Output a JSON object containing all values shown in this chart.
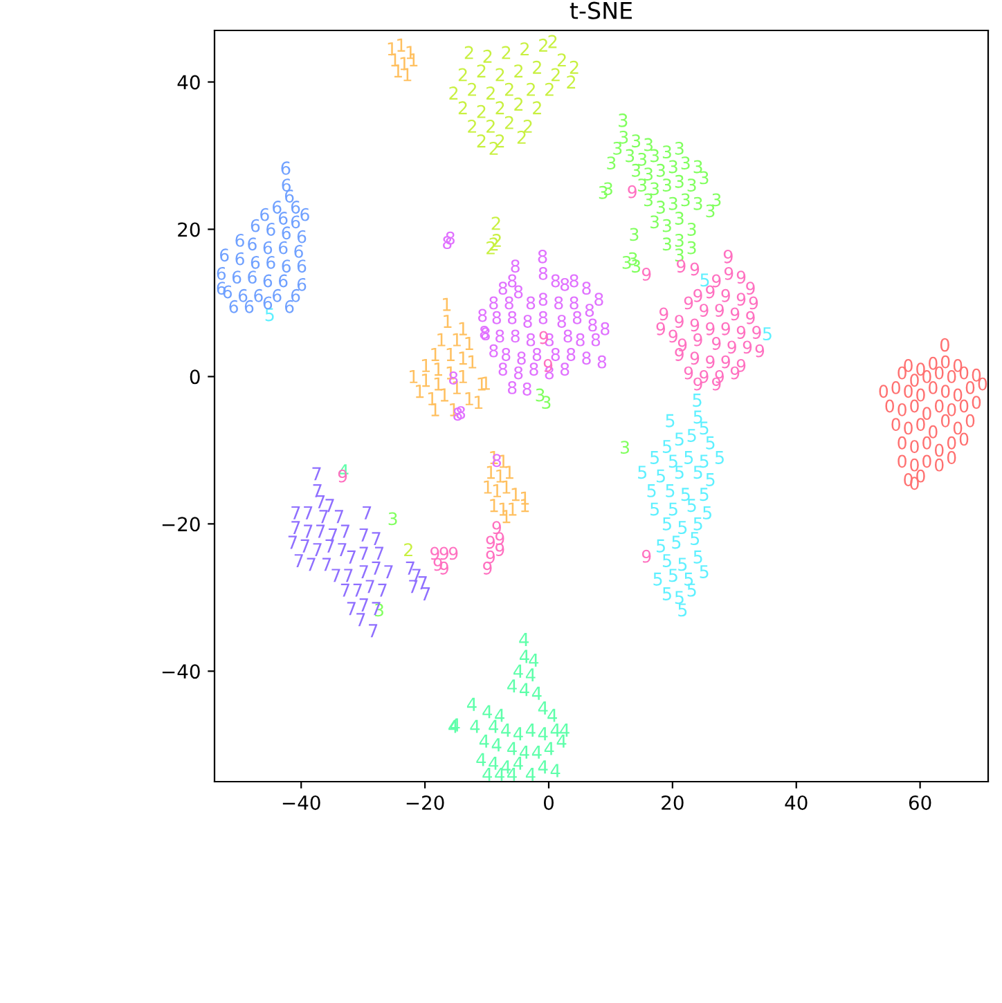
{
  "chart_data": {
    "type": "scatter",
    "title": "t-SNE",
    "xlim": [
      -54,
      71
    ],
    "ylim": [
      -55,
      47
    ],
    "xticks": [
      -40,
      -20,
      0,
      20,
      40,
      60
    ],
    "yticks": [
      -40,
      -20,
      0,
      20,
      40
    ],
    "grid": false,
    "series": [
      {
        "name": "0",
        "color": "#ff7070",
        "x": [
          64,
          60,
          62,
          58,
          66,
          57,
          59,
          61,
          63,
          65,
          67,
          69,
          54,
          56,
          58,
          60,
          62,
          64,
          66,
          68,
          70,
          55,
          57,
          59,
          61,
          63,
          65,
          67,
          69,
          56,
          58,
          60,
          62,
          64,
          66,
          68,
          57,
          59,
          61,
          63,
          65,
          67,
          57,
          59,
          61,
          63,
          65,
          58,
          60,
          59
        ],
        "values": [
          2,
          1,
          1.8,
          1.5,
          1.5,
          0.5,
          -0.5,
          0,
          0.5,
          0,
          0.5,
          0.2,
          -2,
          -1.5,
          -2,
          -2.5,
          -1.5,
          -2,
          -2.5,
          -1.5,
          -1,
          -4,
          -4.5,
          -4,
          -5,
          -4,
          -4.5,
          -4,
          -3.5,
          -6.5,
          -7,
          -6.5,
          -7.5,
          -6,
          -7,
          -6,
          -9,
          -9.5,
          -9,
          -10,
          -9,
          -8.5,
          -11.5,
          -12,
          -11.5,
          -12,
          -11,
          -14,
          -13.5,
          -14.5
        ]
      },
      {
        "name": "1",
        "color": "#ffc060",
        "x": [
          -16.5,
          -24,
          -22.5,
          -25,
          -23.5,
          -22,
          -24.5,
          -23,
          -25.5,
          -14,
          -17.5,
          -15,
          -13,
          -18.5,
          -16,
          -14,
          -12.5,
          -20,
          -18,
          -16,
          -14,
          -22,
          -20,
          -18,
          -15,
          -11,
          -21,
          -19,
          -17,
          -13,
          -18.5,
          -15.5,
          -11.5,
          -10.3,
          -9,
          -7.5,
          -9.5,
          -8,
          -6.5,
          -10,
          -8.5,
          -7,
          -5.5,
          -4,
          -9,
          -7.5,
          -6,
          -4,
          -7
        ],
        "values": [
          7.5,
          45,
          44,
          43,
          42.5,
          43,
          41.5,
          41,
          44.5,
          6.5,
          5,
          5,
          4.5,
          3,
          3,
          2.5,
          2,
          1.5,
          1,
          0.5,
          0,
          0,
          -0.5,
          -1,
          -1.5,
          -1,
          -2,
          -3,
          -2.5,
          -3,
          -4.5,
          -4.5,
          -3.5,
          -0.9,
          -11,
          -11.5,
          -13,
          -13.5,
          -13,
          -15,
          -15.5,
          -15,
          -16,
          -16.5,
          -17.5,
          -18,
          -18,
          -17.5,
          -19
        ]
      },
      {
        "name": "2",
        "color": "#c8f040",
        "x": [
          -8.5,
          -10,
          -7,
          -4,
          -1,
          0.5,
          2,
          4,
          -14,
          -11,
          -8,
          -5,
          -2,
          1,
          3.5,
          -15.5,
          -12.5,
          -9.5,
          -6.5,
          -3,
          0,
          -14,
          -11,
          -8,
          -5,
          -2,
          -12.5,
          -9.5,
          -6.5,
          -3.5,
          -11,
          -8,
          -4.5,
          -9,
          -9.5,
          -13,
          -9,
          -22.8
        ],
        "values": [
          18.5,
          43.5,
          44,
          44.5,
          45,
          45.5,
          43,
          42,
          41,
          41.5,
          41,
          41.5,
          42,
          41,
          40,
          38.5,
          39,
          38.5,
          39,
          39,
          39,
          36.5,
          36,
          36.5,
          37,
          36.5,
          34,
          34,
          34.5,
          34,
          32,
          32,
          32.5,
          31,
          17.5,
          44,
          18,
          -23.5
        ]
      },
      {
        "name": "3",
        "color": "#80ff5e",
        "x": [
          12,
          14,
          16,
          11,
          13,
          15,
          17,
          19,
          21,
          10,
          14,
          16,
          18,
          20,
          22,
          24,
          15,
          17,
          19,
          21,
          23,
          25,
          16,
          18,
          20,
          22,
          24,
          17,
          19,
          21,
          23,
          26,
          27,
          19,
          21,
          23,
          21,
          8.7,
          9.5,
          13.7,
          12.5,
          14,
          13.5,
          -1.5,
          -0.5,
          12.2,
          -25.3,
          -27.5
        ],
        "values": [
          32.5,
          32,
          31.5,
          31,
          30,
          29.5,
          30,
          30.5,
          31,
          29,
          28,
          27.5,
          28,
          28.5,
          29,
          28.5,
          26,
          25.5,
          26,
          26.5,
          26,
          27,
          24,
          23,
          23.5,
          24,
          23.5,
          21,
          20.5,
          21.5,
          20,
          22.5,
          24,
          18,
          18.5,
          17.5,
          16.5,
          25,
          25.5,
          19.3,
          15.5,
          15,
          16,
          -2.5,
          -3.5,
          -9.6,
          -19.3,
          -31.7
        ]
      },
      {
        "name": "4",
        "color": "#5effaa",
        "x": [
          -4,
          -2.5,
          -5,
          -3,
          -6,
          -4,
          -2,
          -1,
          0.5,
          -8,
          -10,
          -9,
          -12,
          -15.5,
          -7,
          -5,
          -3,
          -1,
          1,
          2.5,
          -10.5,
          -8.5,
          -6,
          -4,
          -2,
          0,
          2,
          -11,
          -9,
          -7,
          -5,
          -1,
          1,
          -10,
          -8,
          -6,
          -3,
          -12.5,
          -15.2,
          -33.2
        ],
        "values": [
          -38,
          -38.5,
          -40,
          -40.5,
          -42,
          -42.5,
          -43,
          -45,
          -46,
          -46,
          -45.5,
          -47.5,
          -47.5,
          -47.5,
          -48,
          -48.5,
          -48,
          -48.5,
          -48,
          -48,
          -49.5,
          -50,
          -50.5,
          -51,
          -51,
          -50.5,
          -49.5,
          -52,
          -52.5,
          -53,
          -52.5,
          -53,
          -53.5,
          -54,
          -54,
          -54,
          -54,
          -44.5,
          -47.3,
          -12.8
        ]
      },
      {
        "name": "5",
        "color": "#5ef0ff",
        "x": [
          24,
          19.5,
          25,
          21,
          23,
          26,
          19,
          17,
          20,
          22.5,
          25,
          27.5,
          15,
          18,
          21,
          24,
          26,
          16.5,
          19.5,
          22,
          25,
          17,
          20,
          23,
          25.5,
          19,
          21.5,
          24,
          18,
          20.5,
          23.5,
          19,
          21.5,
          24,
          17.5,
          20,
          22.5,
          25,
          19,
          21,
          23,
          21.5,
          35.2,
          25.1,
          -45.2
        ],
        "values": [
          -5.5,
          -6,
          -7,
          -8.5,
          -8,
          -9,
          -9.5,
          -11,
          -11.5,
          -11,
          -11.5,
          -11,
          -13,
          -13.5,
          -13,
          -13,
          -14,
          -15.5,
          -15.5,
          -16,
          -16,
          -18,
          -18,
          -17.5,
          -18.5,
          -20,
          -20.5,
          -20,
          -23,
          -22.5,
          -22,
          -25,
          -25.5,
          -24.5,
          -27.5,
          -27,
          -27.5,
          -26.5,
          -29.5,
          -30,
          -29,
          -31.7,
          5.8,
          13.1,
          8.4
        ]
      },
      {
        "name": "6",
        "color": "#6fa0ff",
        "x": [
          -42.5,
          -42,
          -44,
          -41,
          -39.5,
          -46,
          -43,
          -41,
          -47.5,
          -45,
          -42.5,
          -40,
          -50,
          -48,
          -45.5,
          -43,
          -40.5,
          -52.5,
          -50,
          -47.5,
          -45,
          -42.5,
          -40,
          -53,
          -50.5,
          -48,
          -45.5,
          -43,
          -40,
          -52,
          -49.5,
          -47,
          -44,
          -41,
          -51,
          -48.5,
          -45.5,
          -42,
          -53
        ],
        "values": [
          26,
          24.5,
          23,
          23,
          22,
          22,
          21.5,
          21,
          20.5,
          20,
          19.5,
          19,
          18.5,
          18,
          17.5,
          17.5,
          17,
          16.5,
          16,
          15.5,
          15.5,
          15,
          15,
          14,
          13.5,
          13.5,
          13,
          13,
          12.5,
          11.5,
          11,
          11,
          11,
          11,
          9.5,
          9.5,
          10,
          9.5,
          12
        ]
      },
      {
        "name": "7",
        "color": "#8f6fff",
        "x": [
          -37.5,
          -37,
          -35.5,
          -41,
          -39,
          -36.5,
          -34,
          -41,
          -39,
          -37,
          -35,
          -33,
          -29.5,
          -41.5,
          -39.5,
          -37.5,
          -35.5,
          -33.5,
          -30,
          -28,
          -40.5,
          -38.5,
          -36,
          -32,
          -30,
          -27.5,
          -34.5,
          -32.5,
          -30,
          -28,
          -26,
          -33,
          -31,
          -29,
          -27,
          -32,
          -30,
          -28,
          -30.5,
          -28.5,
          -22.5,
          -21.5,
          -20.5,
          -20,
          -22
        ],
        "values": [
          -15.5,
          -17,
          -17.5,
          -18.5,
          -18.5,
          -19,
          -19,
          -20.5,
          -21,
          -21,
          -21.5,
          -21,
          -18.5,
          -22.5,
          -23,
          -23.5,
          -23,
          -23.5,
          -21.5,
          -22,
          -25,
          -25.5,
          -25.5,
          -24.5,
          -24,
          -24,
          -27,
          -27,
          -26.5,
          -26,
          -26.5,
          -29,
          -29,
          -28.5,
          -29,
          -31.5,
          -31,
          -31.5,
          -33,
          -34.5,
          -26,
          -27,
          -28,
          -29.5,
          -28.5
        ]
      },
      {
        "name": "8",
        "color": "#e070ff",
        "x": [
          -1,
          -6,
          -7.5,
          -5,
          -5.5,
          1,
          2.5,
          4,
          6,
          8,
          -9,
          -6.5,
          -3,
          -1,
          1.5,
          4,
          6.5,
          -8.5,
          -6,
          -3.5,
          -1,
          2,
          4.5,
          7,
          9,
          -10.5,
          -8,
          -5.5,
          -3,
          0,
          3,
          5,
          7.5,
          -9,
          -7,
          -4.5,
          -2,
          1,
          3.5,
          6,
          8.5,
          -7.5,
          -5,
          -2.5,
          0,
          2.5,
          -6,
          -3.6,
          -10.8,
          -10.3,
          -15.5,
          -14.3,
          -16.5,
          -16,
          -8.5,
          -14.8
        ],
        "values": [
          14,
          13,
          12,
          11.5,
          15,
          13,
          12.5,
          13,
          12,
          10.5,
          10,
          10,
          10,
          10.5,
          10,
          10,
          9,
          8,
          8,
          7.5,
          8,
          7.5,
          8,
          7,
          6.5,
          6,
          5.5,
          5.5,
          5,
          5,
          5.5,
          5,
          5,
          3.5,
          3,
          2.5,
          3,
          3,
          3,
          2.5,
          2,
          1,
          0.5,
          1,
          0.5,
          1,
          -1.5,
          -1.7,
          8.3,
          5.8,
          -0.2,
          -4.9,
          18.2,
          18.8,
          -11.4,
          -5.1
        ]
      },
      {
        "name": "9",
        "color": "#ff70c0",
        "x": [
          29,
          31,
          27,
          32.5,
          24,
          26,
          28.5,
          31,
          33,
          22.5,
          25,
          27.5,
          30,
          32.5,
          21,
          23.5,
          26,
          28.5,
          31,
          33.5,
          20,
          24,
          27,
          29.5,
          32,
          34,
          21,
          23.5,
          26,
          28.5,
          31,
          22.5,
          25,
          27.5,
          30,
          24,
          27,
          18,
          18.5,
          21.5,
          13.4,
          15.7,
          21.3,
          23.5,
          -0.9,
          -0.2,
          -18.5,
          -17,
          -15.5,
          -18,
          -17,
          -8.5,
          -8,
          -9.5,
          -8,
          -9.5,
          -10,
          -33.4,
          15.7
        ],
        "values": [
          14,
          13.5,
          13,
          12,
          11,
          11.5,
          11,
          10.5,
          10,
          10,
          9,
          9,
          8.5,
          8,
          7.5,
          7,
          6.5,
          6.5,
          6,
          6,
          5.5,
          5,
          4.5,
          4,
          4,
          3.5,
          3,
          2.5,
          2,
          2,
          1.5,
          0.5,
          0,
          0,
          0.5,
          -1,
          -1,
          6.5,
          8.5,
          4.3,
          25.1,
          13.9,
          15,
          14.6,
          5.3,
          1.5,
          -24,
          -24,
          -24,
          -25.5,
          -26,
          -20.5,
          -22,
          -22.5,
          -23.5,
          -24.5,
          -26,
          -13.5,
          -24.4
        ]
      }
    ]
  }
}
